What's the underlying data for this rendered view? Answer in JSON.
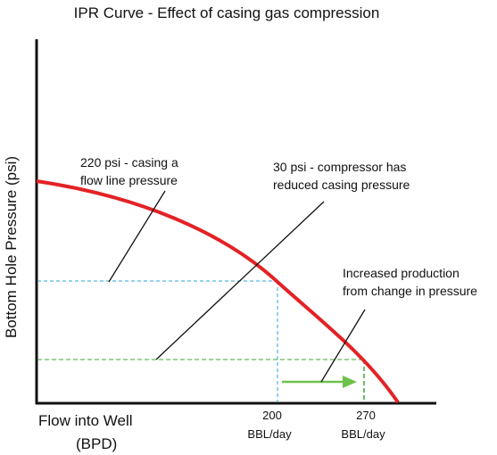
{
  "title": "IPR Curve - Effect of casing gas compression",
  "axes": {
    "ylabel": "Bottom Hole Pressure (psi)",
    "xlabel_line1": "Flow into Well",
    "xlabel_line2": "(BPD)"
  },
  "ticks": [
    {
      "value": "200",
      "unit": "BBL/day"
    },
    {
      "value": "270",
      "unit": "BBL/day"
    }
  ],
  "annotations": {
    "casing_220": {
      "line1": "220 psi - casing a",
      "line2": "flow line pressure"
    },
    "compressor_30": {
      "line1": "30 psi - compressor has",
      "line2": "reduced casing pressure"
    },
    "increased": {
      "line1": "Increased production",
      "line2": "from change in pressure"
    }
  },
  "colors": {
    "curve": "#e32226",
    "high_pressure_guide": "#2aa6d9",
    "low_pressure_guide": "#3aaa35",
    "arrow": "#6cc24a",
    "axis": "#111111",
    "text": "#111111"
  },
  "chart_data": {
    "type": "line",
    "title": "IPR Curve - Effect of casing gas compression",
    "xlabel": "Flow into Well (BPD)",
    "ylabel": "Bottom Hole Pressure (psi)",
    "x_ticks": [
      "200 BBL/day",
      "270 BBL/day"
    ],
    "series": [
      {
        "values": []
      }
    ],
    "reference_lines": [
      {
        "label": "220 psi - casing a flow line pressure",
        "x": 200
      },
      {
        "label": "30 psi - compressor has reduced casing pressure",
        "x": 270
      }
    ],
    "annotations": [
      "Increased production from change in pressure"
    ],
    "grid": false
  }
}
